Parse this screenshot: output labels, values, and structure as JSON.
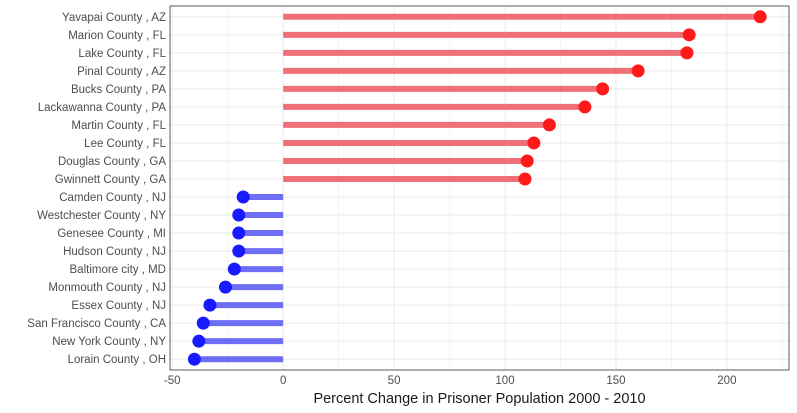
{
  "chart_data": {
    "type": "lollipop",
    "title": "",
    "xlabel": "Percent Change in Prisoner Population 2000 - 2010",
    "ylabel": "",
    "xlim": [
      -51,
      228
    ],
    "xticks": [
      -50,
      0,
      50,
      100,
      150,
      200
    ],
    "grid": true,
    "legend": "none",
    "colors": {
      "positive_line": "#f07078",
      "positive_point": "#ff1a1a",
      "negative_line": "#6e6ef5",
      "negative_point": "#1a1aff",
      "grid": "#ebebeb",
      "panel": "#ffffff",
      "border": "#333333"
    },
    "categories": [
      "Yavapai County , AZ",
      "Marion County , FL",
      "Lake County , FL",
      "Pinal County , AZ",
      "Bucks County , PA",
      "Lackawanna County , PA",
      "Martin County , FL",
      "Lee County , FL",
      "Douglas County , GA",
      "Gwinnett County , GA",
      "Camden County , NJ",
      "Westchester County , NY",
      "Genesee County , MI",
      "Hudson County , NJ",
      "Baltimore city , MD",
      "Monmouth County , NJ",
      "Essex County , NJ",
      "San Francisco County , CA",
      "New York County , NY",
      "Lorain County , OH"
    ],
    "values": [
      215,
      183,
      182,
      160,
      144,
      136,
      120,
      113,
      110,
      109,
      -18,
      -20,
      -20,
      -20,
      -22,
      -26,
      -33,
      -36,
      -38,
      -40
    ]
  }
}
